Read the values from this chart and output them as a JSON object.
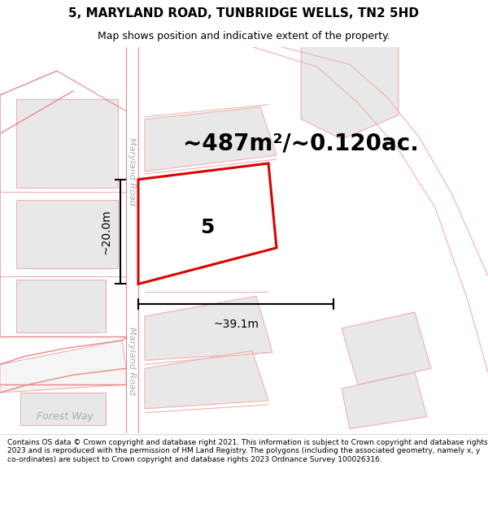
{
  "title_line1": "5, MARYLAND ROAD, TUNBRIDGE WELLS, TN2 5HD",
  "title_line2": "Map shows position and indicative extent of the property.",
  "copyright_text": "Contains OS data © Crown copyright and database right 2021. This information is subject to Crown copyright and database rights 2023 and is reproduced with the permission of HM Land Registry. The polygons (including the associated geometry, namely x, y co-ordinates) are subject to Crown copyright and database rights 2023 Ordnance Survey 100026316.",
  "area_text": "~487m²/~0.120ac.",
  "property_label": "5",
  "dim_width": "~39.1m",
  "dim_height": "~20.0m",
  "road_label1": "Maryland Road",
  "road_label2": "Maryland Road",
  "road_label3": "Forest Way",
  "bg_color": "#ffffff",
  "map_bg": "#ffffff",
  "building_fill": "#e8e8e8",
  "building_edge": "#f0b0b0",
  "property_fill": "#ffffff",
  "property_edge": "#dd0000",
  "dim_color": "#000000",
  "text_color": "#000000",
  "road_text_color": "#aaaaaa",
  "title_fontsize": 11,
  "subtitle_fontsize": 9,
  "area_fontsize": 20,
  "property_num_fontsize": 18,
  "dim_fontsize": 10,
  "road_fontsize": 8,
  "copyright_fontsize": 6.5
}
